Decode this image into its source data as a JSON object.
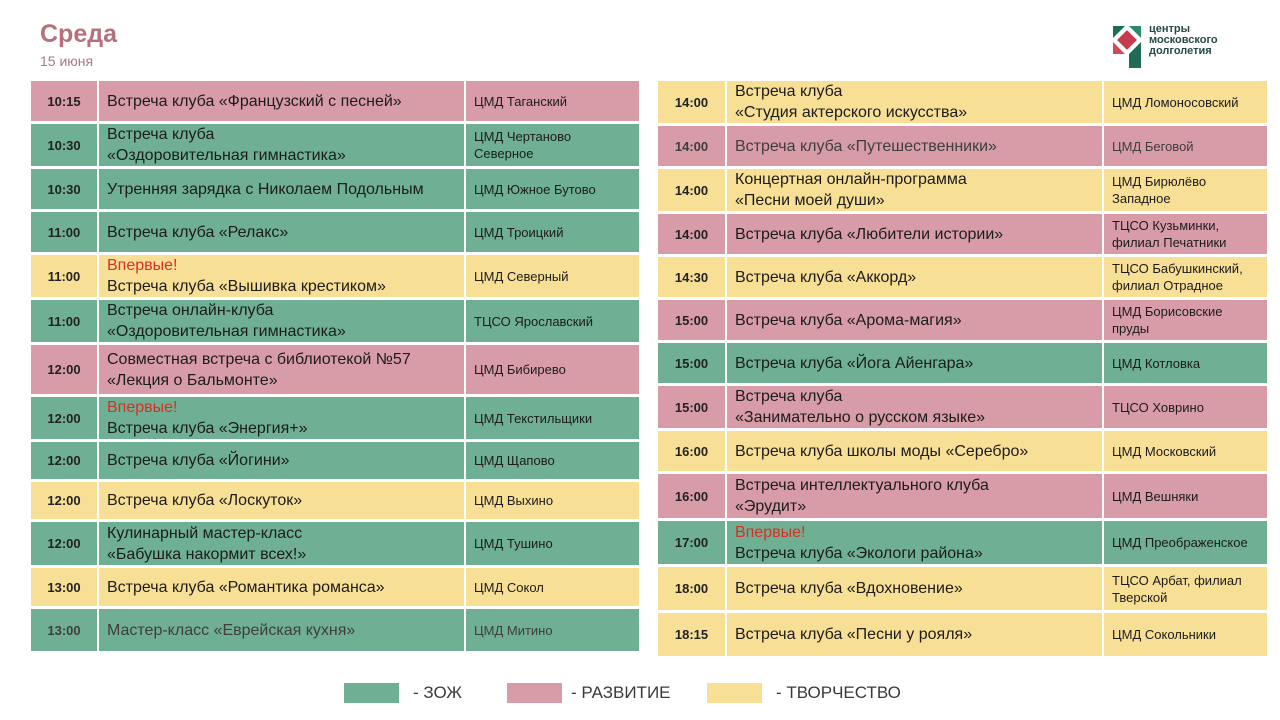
{
  "header": {
    "day": "Среда",
    "date": "15 июня",
    "logo_text": [
      "центры",
      "московского",
      "долголетия"
    ]
  },
  "colors": {
    "zozh": "#6faf93",
    "razvitie": "#d79ca8",
    "tvorchestvo": "#f7df95",
    "first_time": "#d93025"
  },
  "left_schedule": [
    {
      "time": "10:15",
      "title": [
        "Встреча клуба «Французский с песней»"
      ],
      "place": "ЦМД Таганский",
      "category": "razv"
    },
    {
      "time": "10:30",
      "title": [
        "Встреча клуба",
        "«Оздоровительная гимнастика»"
      ],
      "place": "ЦМД Чертаново Северное",
      "category": "zozh"
    },
    {
      "time": "10:30",
      "title": [
        "Утренняя зарядка с Николаем Подольным"
      ],
      "place": "ЦМД Южное Бутово",
      "category": "zozh"
    },
    {
      "time": "11:00",
      "title": [
        "Встреча клуба «Релакс»"
      ],
      "place": "ЦМД Троицкий",
      "category": "zozh"
    },
    {
      "time": "11:00",
      "badge": "Впервые!",
      "title": [
        "Встреча клуба «Вышивка крестиком»"
      ],
      "place": "ЦМД Северный",
      "category": "tvor"
    },
    {
      "time": "11:00",
      "title": [
        "Встреча онлайн-клуба",
        "«Оздоровительная гимнастика»"
      ],
      "place": "ТЦСО Ярославский",
      "category": "zozh"
    },
    {
      "time": "12:00",
      "title": [
        "Совместная встреча с библиотекой №57",
        "«Лекция о Бальмонте»"
      ],
      "place": "ЦМД Бибирево",
      "category": "razv"
    },
    {
      "time": "12:00",
      "badge": "Впервые!",
      "title": [
        "Встреча клуба «Энергия+»"
      ],
      "place": "ЦМД Текстильщики",
      "category": "zozh"
    },
    {
      "time": "12:00",
      "title": [
        "Встреча клуба «Йогини»"
      ],
      "place": "ЦМД Щапово",
      "category": "zozh"
    },
    {
      "time": "12:00",
      "title": [
        "Встреча клуба «Лоскуток»"
      ],
      "place": "ЦМД Выхино",
      "category": "tvor"
    },
    {
      "time": "12:00",
      "title": [
        "Кулинарный мастер-класс",
        "«Бабушка накормит всех!»"
      ],
      "place": "ЦМД Тушино",
      "category": "zozh"
    },
    {
      "time": "13:00",
      "title": [
        "Встреча клуба «Романтика романса»"
      ],
      "place": "ЦМД Сокол",
      "category": "tvor"
    },
    {
      "time": "13:00",
      "title": [
        "Мастер-класс «Еврейская кухня»"
      ],
      "place": "ЦМД Митино",
      "category": "zozh",
      "dim": true
    }
  ],
  "right_schedule": [
    {
      "time": "14:00",
      "title": [
        "Встреча клуба",
        "«Студия актерского искусства»"
      ],
      "place": "ЦМД Ломоносовский",
      "category": "tvor"
    },
    {
      "time": "14:00",
      "title": [
        "Встреча клуба «Путешественники»"
      ],
      "place": "ЦМД Беговой",
      "category": "razv",
      "dim": true
    },
    {
      "time": "14:00",
      "title": [
        "Концертная онлайн-программа",
        "«Песни моей души»"
      ],
      "place": "ЦМД Бирюлёво Западное",
      "category": "tvor"
    },
    {
      "time": "14:00",
      "title": [
        "Встреча клуба «Любители истории»"
      ],
      "place": "ТЦСО Кузьминки, филиал Печатники",
      "category": "razv"
    },
    {
      "time": "14:30",
      "title": [
        "Встреча клуба «Аккорд»"
      ],
      "place": "ТЦСО Бабушкинский, филиал Отрадное",
      "category": "tvor"
    },
    {
      "time": "15:00",
      "title": [
        "Встреча клуба «Арома-магия»"
      ],
      "place": "ЦМД Борисовские пруды",
      "category": "razv"
    },
    {
      "time": "15:00",
      "title": [
        "Встреча клуба «Йога Айенгара»"
      ],
      "place": "ЦМД Котловка",
      "category": "zozh"
    },
    {
      "time": "15:00",
      "title": [
        "Встреча клуба",
        "«Занимательно о русском языке»"
      ],
      "place": "ТЦСО Ховрино",
      "category": "razv"
    },
    {
      "time": "16:00",
      "title": [
        "Встреча клуба школы моды «Серебро»"
      ],
      "place": "ЦМД Московский",
      "category": "tvor"
    },
    {
      "time": "16:00",
      "title": [
        "Встреча интеллектуального клуба",
        "«Эрудит»"
      ],
      "place": "ЦМД Вешняки",
      "category": "razv"
    },
    {
      "time": "17:00",
      "badge": "Впервые!",
      "title": [
        "Встреча клуба «Экологи района»"
      ],
      "place": "ЦМД Преображенское",
      "category": "zozh"
    },
    {
      "time": "18:00",
      "title": [
        "Встреча клуба «Вдохновение»"
      ],
      "place": "ТЦСО Арбат, филиал Тверской",
      "category": "tvor"
    },
    {
      "time": "18:15",
      "title": [
        "Встреча клуба «Песни у рояля»"
      ],
      "place": "ЦМД Сокольники",
      "category": "tvor"
    }
  ],
  "legend": {
    "zozh": "- ЗОЖ",
    "razvitie": "- РАЗВИТИЕ",
    "tvorchestvo": "- ТВОРЧЕСТВО"
  }
}
